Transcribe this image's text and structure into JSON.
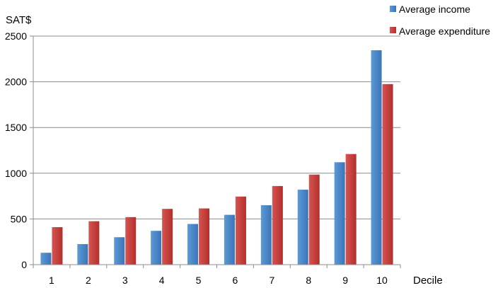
{
  "chart_data": {
    "type": "bar",
    "title": "",
    "ylabel": "SAT$",
    "xlabel": "Decile",
    "categories": [
      "1",
      "2",
      "3",
      "4",
      "5",
      "6",
      "7",
      "8",
      "9",
      "10"
    ],
    "ylim": [
      0,
      2500
    ],
    "yticks": [
      0,
      500,
      1000,
      1500,
      2000,
      2500
    ],
    "grid": "horizontal",
    "legend": "top-right",
    "series": [
      {
        "name": "Average income",
        "color": "#4a87c9",
        "values": [
          130,
          225,
          300,
          370,
          445,
          545,
          650,
          820,
          1120,
          2345
        ]
      },
      {
        "name": "Average expenditure",
        "color": "#c8403d",
        "values": [
          410,
          475,
          520,
          610,
          615,
          745,
          860,
          985,
          1210,
          1975
        ]
      }
    ]
  }
}
